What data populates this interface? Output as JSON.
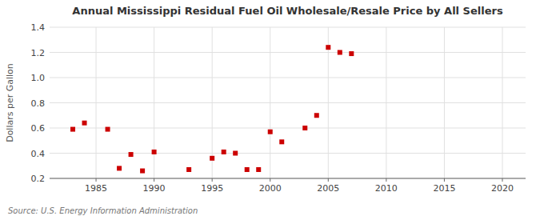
{
  "chart_data": {
    "type": "scatter",
    "title": "Annual Mississippi Residual Fuel Oil Wholesale/Resale Price by All Sellers",
    "y_label": "Dollars per Gallon",
    "annotations": [
      "Source: U.S. Energy Information Administration"
    ],
    "x": [
      1983,
      1984,
      1986,
      1987,
      1988,
      1989,
      1990,
      1993,
      1995,
      1996,
      1997,
      1998,
      1999,
      2000,
      2001,
      2003,
      2004,
      2005,
      2006,
      2007
    ],
    "values": [
      0.59,
      0.64,
      0.59,
      0.28,
      0.39,
      0.26,
      0.41,
      0.27,
      0.36,
      0.41,
      0.4,
      0.27,
      0.27,
      0.57,
      0.49,
      0.6,
      0.7,
      1.24,
      1.2,
      1.19
    ],
    "color": "#cc0000",
    "marker": "square",
    "xlim": [
      1981,
      2022
    ],
    "ylim": [
      0.2,
      1.4
    ],
    "xticks": [
      1985,
      1990,
      1995,
      2000,
      2005,
      2010,
      2015,
      2020
    ],
    "yticks": [
      0.2,
      0.4,
      0.6,
      0.8,
      {
        "value": 1,
        "label": "1.0"
      },
      1.2,
      1.4
    ],
    "grid": true
  }
}
